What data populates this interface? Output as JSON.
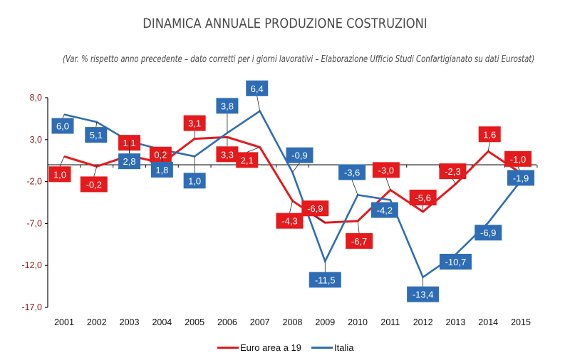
{
  "chart_data": {
    "type": "line",
    "title": "DINAMICA ANNUALE PRODUZIONE COSTRUZIONI",
    "subtitle": "(Var. % rispetto anno precedente – dato corretti per i giorni lavorativi – Elaborazione Ufficio Studi Confartigianato su dati Eurostat)",
    "xlabel": "",
    "ylabel": "",
    "x": [
      "2001",
      "2002",
      "2003",
      "2004",
      "2005",
      "2006",
      "2007",
      "2008",
      "2009",
      "2010",
      "2011",
      "2012",
      "2013",
      "2014",
      "2015"
    ],
    "yticks": [
      "8,0",
      "3,0",
      "-2,0",
      "-7,0",
      "-12,0",
      "-17,0"
    ],
    "ytick_values": [
      8,
      3,
      -2,
      -7,
      -12,
      -17
    ],
    "ylim": [
      -17,
      8
    ],
    "grid": false,
    "legend_position": "bottom",
    "series": [
      {
        "name": "Euro area a 19",
        "color": "#e41a1c",
        "values": [
          1.0,
          -0.2,
          1.1,
          0.2,
          3.1,
          3.3,
          2.1,
          -4.3,
          -6.9,
          -6.7,
          -3.0,
          -5.6,
          -2.3,
          1.6,
          -1.0
        ],
        "labels": [
          "1,0",
          "-0,2",
          "1,1",
          "0,2",
          "3,1",
          "3,3",
          "2,1",
          "-4,3",
          "-6,9",
          "-6,7",
          "-3,0",
          "-5,6",
          "-2,3",
          "1,6",
          "-1,0"
        ]
      },
      {
        "name": "Italia",
        "color": "#2e6db4",
        "values": [
          6.0,
          5.1,
          2.8,
          1.8,
          1.0,
          3.8,
          6.4,
          -0.9,
          -11.5,
          -3.6,
          -4.2,
          -13.4,
          -10.7,
          -6.9,
          -1.9
        ],
        "labels": [
          "6,0",
          "5,1",
          "2,8",
          "1,8",
          "1,0",
          "3,8",
          "6,4",
          "-0,9",
          "-11,5",
          "-3,6",
          "-4,2",
          "-13,4",
          "-10,7",
          "-6,9",
          "-1,9"
        ]
      }
    ]
  }
}
